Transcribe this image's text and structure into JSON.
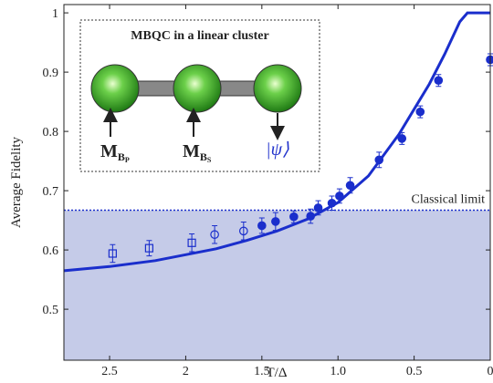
{
  "chart_data": {
    "type": "scatter",
    "x_label": "T/Δ",
    "y_label": "Average Fidelity",
    "xlim": [
      2.8,
      0
    ],
    "ylim": [
      0.414,
      1.014
    ],
    "xticks": [
      2.5,
      2,
      1.5,
      {
        "value": 1,
        "label": "1.0"
      },
      0.5,
      0
    ],
    "yticks": [
      0.5,
      0.6,
      0.7,
      0.8,
      0.9,
      1
    ],
    "classical_limit": {
      "value": 0.667,
      "label": "Classical limit",
      "fill": "#c5cbe8",
      "color": "#1a2ecc"
    },
    "series": [
      {
        "kind": "line",
        "color": "#1a2ecc",
        "x": [
          2.8,
          2.5,
          2.2,
          2.0,
          1.8,
          1.6,
          1.4,
          1.2,
          1.0,
          0.8,
          0.6,
          0.4,
          0.3,
          0.2,
          0.15,
          0
        ],
        "values": [
          0.565,
          0.572,
          0.582,
          0.592,
          0.602,
          0.616,
          0.632,
          0.652,
          0.68,
          0.725,
          0.795,
          0.88,
          0.93,
          0.985,
          1.0,
          1.0
        ]
      },
      {
        "kind": "points",
        "marker": "square-open",
        "color": "#1a2ecc",
        "x": [
          2.48,
          2.24,
          1.96
        ],
        "values": [
          0.594,
          0.603,
          0.612
        ],
        "errors": [
          0.015,
          0.013,
          0.015
        ]
      },
      {
        "kind": "points",
        "marker": "circle-open",
        "color": "#1a2ecc",
        "x": [
          1.81,
          1.62
        ],
        "values": [
          0.626,
          0.632
        ],
        "errors": [
          0.015,
          0.015
        ]
      },
      {
        "kind": "points",
        "marker": "circle",
        "color": "#1a2ecc",
        "x": [
          1.5,
          1.41,
          1.29,
          1.18,
          1.13,
          1.04,
          0.99,
          0.92,
          0.73,
          0.58,
          0.46,
          0.34,
          0
        ],
        "values": [
          0.641,
          0.648,
          0.656,
          0.657,
          0.671,
          0.679,
          0.691,
          0.709,
          0.752,
          0.788,
          0.833,
          0.886,
          0.921
        ],
        "errors": [
          0.013,
          0.015,
          0.01,
          0.012,
          0.012,
          0.012,
          0.012,
          0.013,
          0.013,
          0.01,
          0.01,
          0.01,
          0.01
        ]
      }
    ],
    "inset": {
      "title": "MBQC in a linear cluster",
      "labels": [
        {
          "main": "M",
          "sub": "B",
          "subsub": "P"
        },
        {
          "main": "M",
          "sub": "B",
          "subsub": "S"
        },
        {
          "main": "|ψ⟩"
        }
      ]
    }
  }
}
